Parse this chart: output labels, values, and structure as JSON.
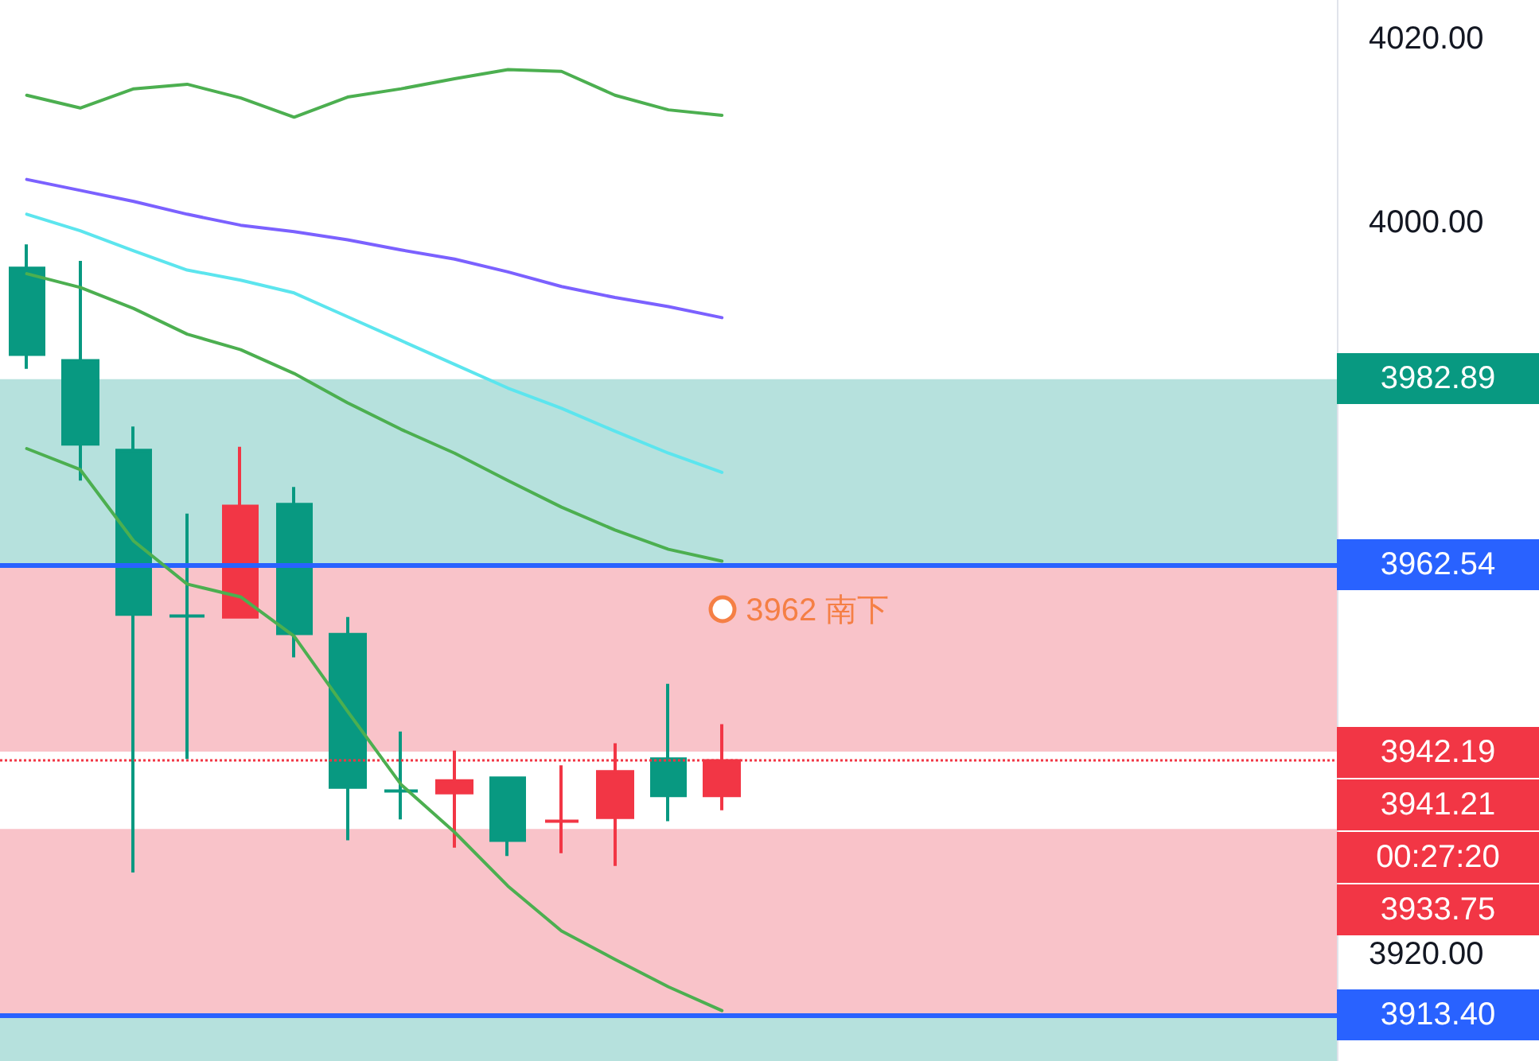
{
  "chart_data": {
    "type": "candlestick",
    "categories": [
      null,
      null,
      null,
      null,
      null,
      null,
      null,
      null,
      null,
      null,
      null,
      null,
      null,
      null,
      null,
      null,
      null,
      null,
      null,
      null,
      null,
      null,
      null,
      null,
      null
    ],
    "ylim": [
      3908.4,
      4024.3
    ],
    "yticks": [
      {
        "value": 3920,
        "label": "3920.00"
      },
      {
        "value": 4000,
        "label": "4000.00"
      },
      {
        "value": 4020,
        "label": "4020.00"
      }
    ],
    "tick_labels": "y",
    "grid": false,
    "series": [
      {
        "type": "line",
        "color": "#4caf50",
        "values": [
          4013.9,
          4012.5,
          4014.6,
          4015.1,
          4013.6,
          4011.5,
          4013.7,
          4014.6,
          4015.7,
          4016.7,
          4016.5,
          4013.9,
          4012.3,
          4011.7,
          null,
          null,
          null,
          null,
          null,
          null,
          null,
          null,
          null,
          null,
          null
        ]
      },
      {
        "type": "line",
        "color": "#7b61ff",
        "values": [
          4004.7,
          4003.5,
          4002.3,
          4000.9,
          3999.7,
          3999.0,
          3998.1,
          3997.0,
          3996.0,
          3994.6,
          3993.0,
          3991.8,
          3990.8,
          3989.6,
          null,
          null,
          null,
          null,
          null,
          null,
          null,
          null,
          null,
          null,
          null
        ]
      },
      {
        "type": "line",
        "color": "#5ce5ee",
        "values": [
          4000.9,
          3999.1,
          3996.9,
          3994.8,
          3993.7,
          3992.3,
          3989.7,
          3987.1,
          3984.5,
          3981.9,
          3979.7,
          3977.2,
          3974.8,
          3972.7,
          null,
          null,
          null,
          null,
          null,
          null,
          null,
          null,
          null,
          null,
          null
        ]
      },
      {
        "type": "line",
        "color": "#4caf50",
        "values": [
          3994.4,
          3992.9,
          3990.6,
          3987.8,
          3986.1,
          3983.5,
          3980.3,
          3977.4,
          3974.8,
          3971.8,
          3968.9,
          3966.4,
          3964.3,
          3963.0,
          null,
          null,
          null,
          null,
          null,
          null,
          null,
          null,
          null,
          null,
          null
        ]
      },
      {
        "type": "line",
        "color": "#4caf50",
        "values": [
          3975.3,
          3973.0,
          3965.2,
          3960.5,
          3959.1,
          3954.8,
          3946.6,
          3938.6,
          3933.4,
          3927.5,
          3922.6,
          3919.5,
          3916.5,
          3913.9,
          null,
          null,
          null,
          null,
          null,
          null,
          null,
          null,
          null,
          null,
          null
        ]
      },
      {
        "ohlc": [
          [
            3995.0,
            3997.6,
            3984.0,
            3985.6
          ],
          [
            3984.9,
            3995.8,
            3971.8,
            3975.8
          ],
          [
            3975.1,
            3977.7,
            3929.0,
            3957.2
          ],
          [
            3957.0,
            3968.2,
            3941.4,
            3957.0
          ],
          [
            3956.9,
            3975.5,
            3956.9,
            3969.0
          ],
          [
            3969.2,
            3971.1,
            3952.5,
            3955.1
          ],
          [
            3955.0,
            3956.9,
            3932.5,
            3938.3
          ],
          [
            3937.9,
            3944.4,
            3934.8,
            3937.9
          ],
          [
            3937.7,
            3942.3,
            3931.7,
            3939.0
          ],
          [
            3939.3,
            3939.3,
            3930.8,
            3932.5
          ],
          [
            3934.6,
            3940.7,
            3931.1,
            3934.6
          ],
          [
            3935.0,
            3943.1,
            3929.7,
            3940.0
          ],
          [
            3941.4,
            3949.6,
            3934.6,
            3937.4
          ],
          [
            3937.4,
            3945.2,
            3935.8,
            3941.2
          ],
          null,
          null,
          null,
          null,
          null,
          null,
          null,
          null,
          null,
          null,
          null
        ],
        "colors": [
          "#089981",
          "#089981",
          "#089981",
          "#089981",
          "#f23645",
          "#089981",
          "#089981",
          "#089981",
          "#f23645",
          "#089981",
          "#f23645",
          "#f23645",
          "#089981",
          "#f23645",
          null,
          null,
          null,
          null,
          null,
          null,
          null,
          null,
          null,
          null,
          null
        ]
      }
    ],
    "bands": [
      {
        "axis": "y",
        "from": 3962.54,
        "to": 3982.89,
        "color": "#b2dfdb",
        "label": "3982.89"
      },
      {
        "axis": "y",
        "from": 3962.54,
        "to": 3942.19,
        "color": "#f9c0c6",
        "label": "3942.19"
      },
      {
        "axis": "y",
        "from": 3913.4,
        "to": 3933.75,
        "color": "#f9c0c6",
        "label": "3933.75"
      },
      {
        "axis": "y",
        "from": 3913.4,
        "to": 3908.4,
        "color": "#b2dfdb"
      }
    ],
    "ref_lines": [
      {
        "axis": "y",
        "value": 3962.54,
        "label": "3962.54",
        "color": "#2962ff",
        "line_style": "solid"
      },
      {
        "axis": "y",
        "value": 3941.21,
        "label": "3941.21",
        "color": "#f23645",
        "line_style": "dotted"
      },
      {
        "axis": "y",
        "value": 3913.4,
        "label": "3913.40",
        "color": "#2962ff",
        "line_style": "solid"
      }
    ],
    "annotations": [
      "3962 南下",
      "00:27:20"
    ]
  }
}
